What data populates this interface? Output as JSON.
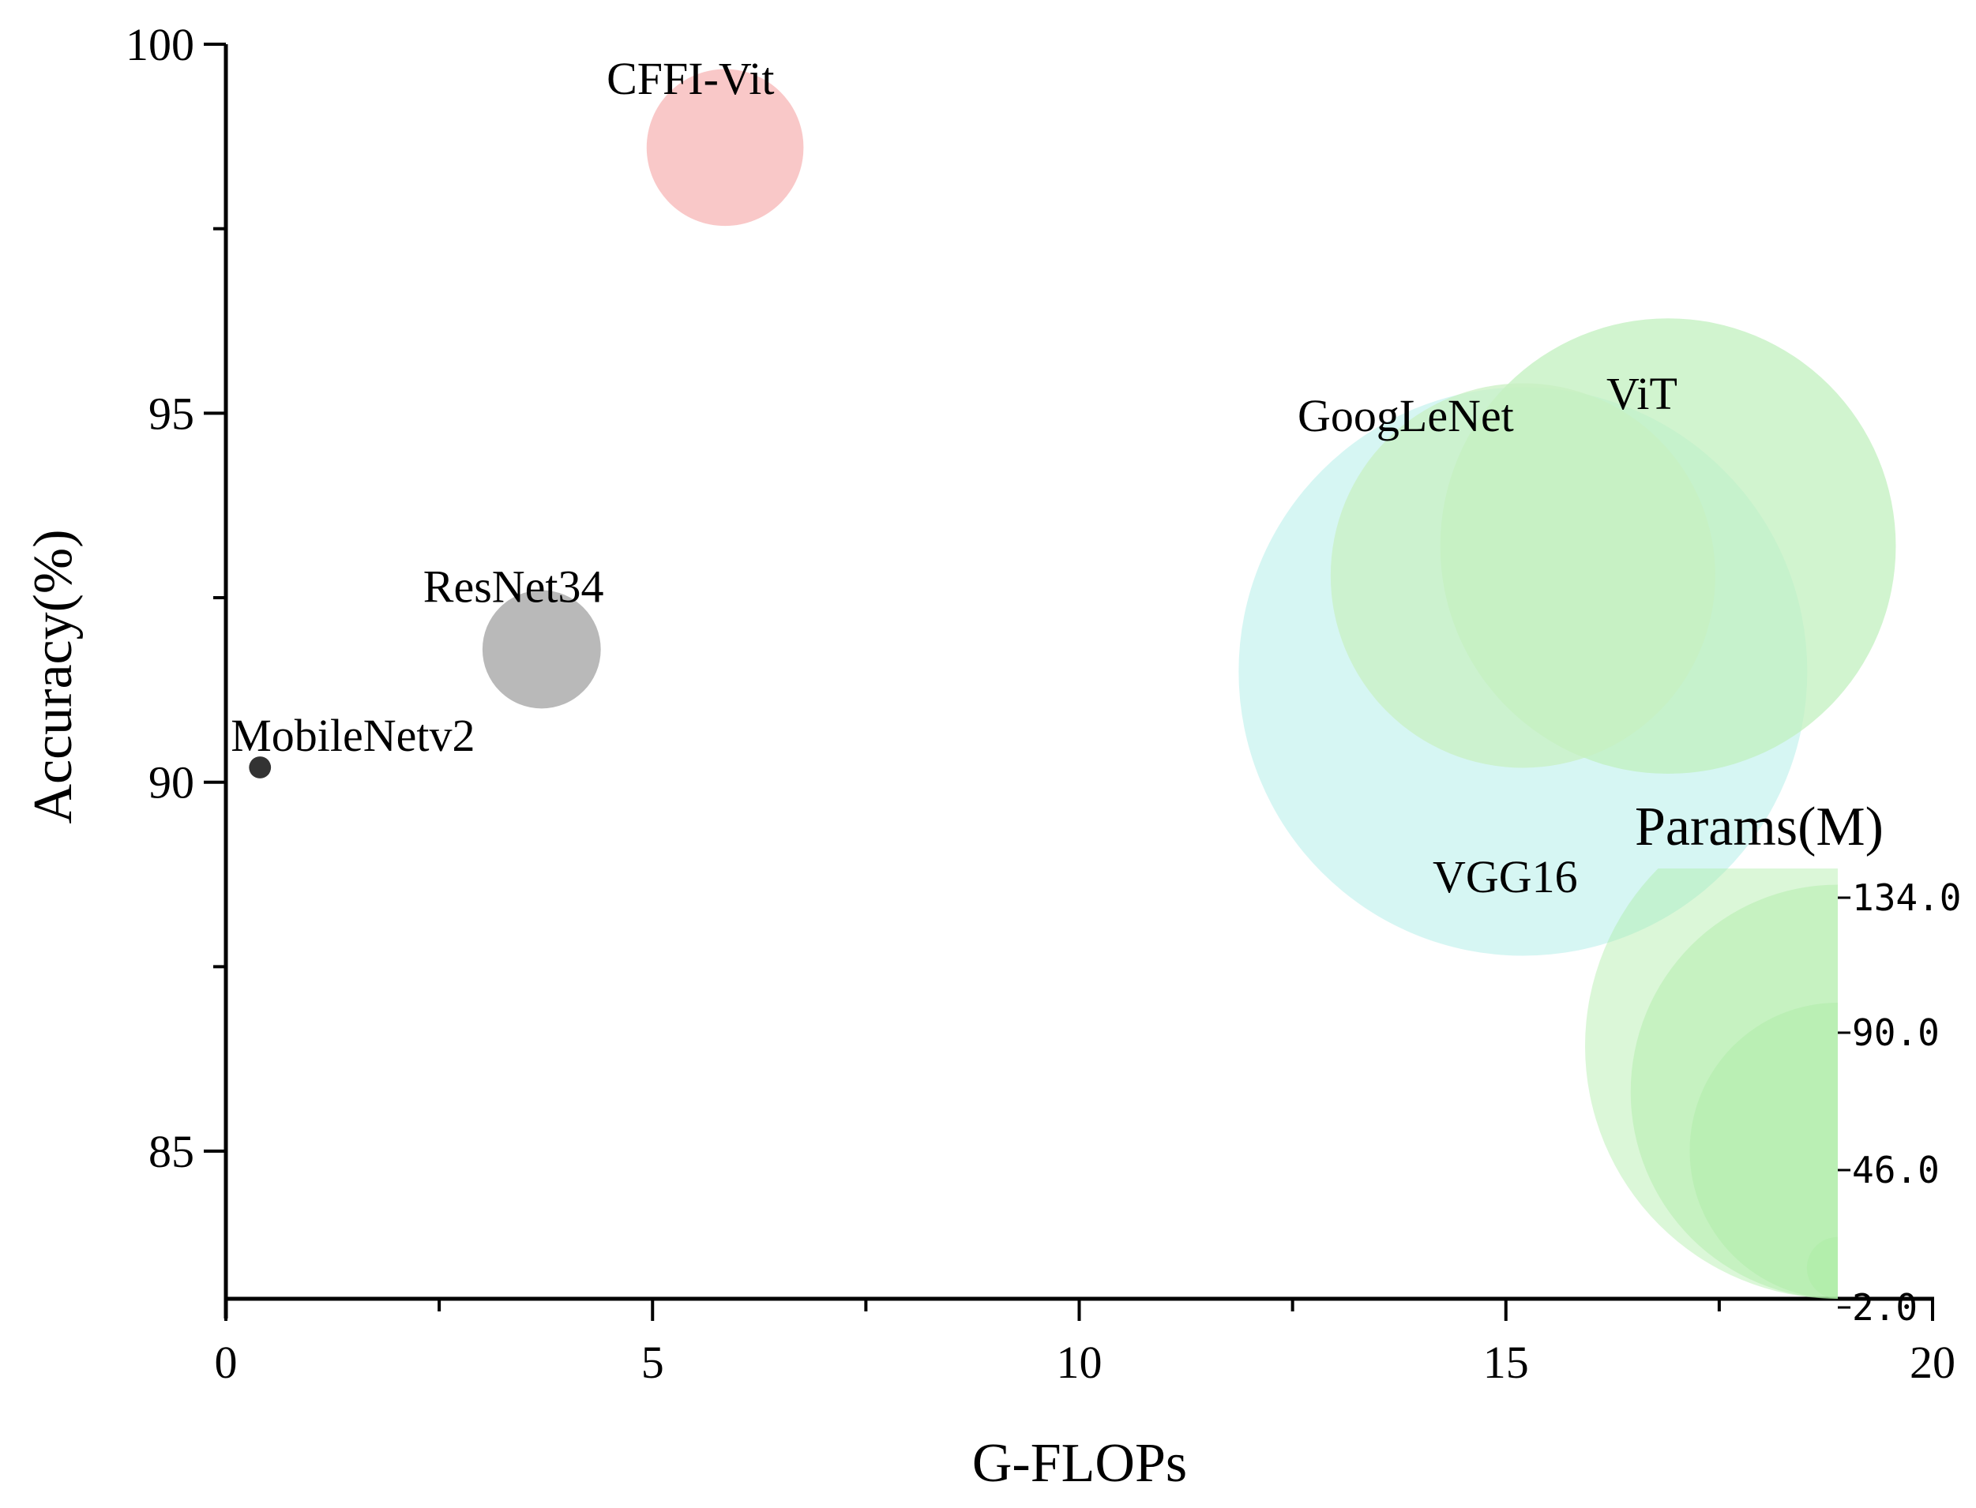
{
  "chart_data": {
    "type": "scatter",
    "subtype": "bubble",
    "xlabel": "G-FLOPs",
    "ylabel": "Accuracy(%)",
    "xlim": [
      0,
      20
    ],
    "ylim": [
      83,
      100
    ],
    "xticks": [
      0,
      5,
      10,
      15,
      20
    ],
    "yticks": [
      85,
      90,
      95,
      100
    ],
    "grid": false,
    "points": [
      {
        "name": "CFFI-Vit",
        "x": 5.85,
        "y": 98.6,
        "params": 10.2,
        "color": "#f6b3b3"
      },
      {
        "name": "GoogLeNet",
        "x": 15.2,
        "y": 92.8,
        "params": 61.3,
        "color": "#c7f0c0"
      },
      {
        "name": "ViT",
        "x": 16.9,
        "y": 93.2,
        "params": 86,
        "color": "#bff0bc"
      },
      {
        "name": "ResNet34",
        "x": 3.7,
        "y": 91.8,
        "params": 5.8,
        "color": "#9e9e9e"
      },
      {
        "name": "MobileNetv2",
        "x": 0.4,
        "y": 90.2,
        "params": 0.2,
        "color": "#333333"
      },
      {
        "name": "VGG16",
        "x": 15.2,
        "y": 91.5,
        "params": 134,
        "color": "#c6f2ef"
      }
    ],
    "legend": {
      "title": "Params(M)",
      "position": "bottom-right",
      "values": [
        "134.0",
        "90.0",
        "46.0",
        "2.0"
      ],
      "color": "#a9eba3"
    }
  }
}
